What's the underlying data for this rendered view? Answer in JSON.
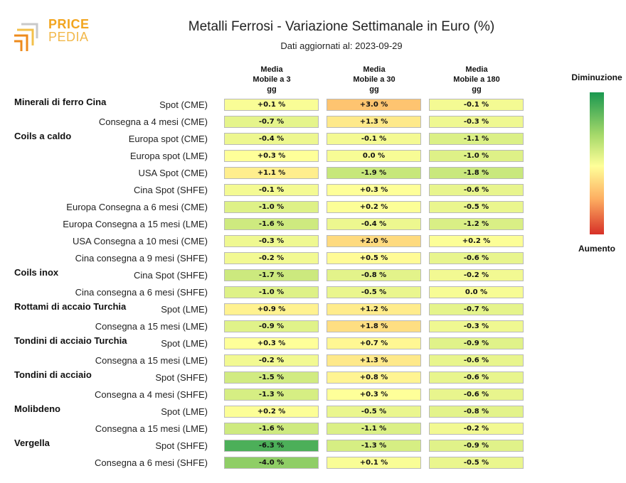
{
  "logo": {
    "word1": "PRICE",
    "word2": "PEDIA"
  },
  "title": "Metalli Ferrosi - Variazione Settimanale in Euro (%)",
  "subtitle": "Dati aggiornati al: 2023-09-29",
  "legend": {
    "top": "Diminuzione",
    "bottom": "Aumento",
    "colors": [
      "#1a9850",
      "#a6d96a",
      "#ffff99",
      "#fdae61",
      "#d73027"
    ],
    "range": [
      -8,
      8
    ]
  },
  "chart_data": {
    "type": "heatmap",
    "columns": [
      {
        "line1": "Media",
        "line2": "Mobile a 3",
        "line3": "gg"
      },
      {
        "line1": "Media",
        "line2": "Mobile a 30",
        "line3": "gg"
      },
      {
        "line1": "Media",
        "line2": "Mobile a 180",
        "line3": "gg"
      }
    ],
    "groups": [
      {
        "name": "Minerali di ferro Cina",
        "rows": [
          {
            "label": "Spot (CME)",
            "values": [
              0.1,
              3.0,
              -0.1
            ]
          },
          {
            "label": "Consegna a 4 mesi (CME)",
            "values": [
              -0.7,
              1.3,
              -0.3
            ]
          }
        ]
      },
      {
        "name": "Coils a caldo",
        "rows": [
          {
            "label": "Europa spot (CME)",
            "values": [
              -0.4,
              -0.1,
              -1.1
            ]
          },
          {
            "label": "Europa spot (LME)",
            "values": [
              0.3,
              0.0,
              -1.0
            ]
          },
          {
            "label": "USA Spot (CME)",
            "values": [
              1.1,
              -1.9,
              -1.8
            ]
          },
          {
            "label": "Cina Spot (SHFE)",
            "values": [
              -0.1,
              0.3,
              -0.6
            ]
          },
          {
            "label": "Europa Consegna a 6 mesi (CME)",
            "values": [
              -1.0,
              0.2,
              -0.5
            ]
          },
          {
            "label": "Europa Consegna a 15 mesi (LME)",
            "values": [
              -1.6,
              -0.4,
              -1.2
            ]
          },
          {
            "label": "USA Consegna a 10 mesi (CME)",
            "values": [
              -0.3,
              2.0,
              0.2
            ]
          },
          {
            "label": "Cina consegna a 9 mesi (SHFE)",
            "values": [
              -0.2,
              0.5,
              -0.6
            ]
          }
        ]
      },
      {
        "name": "Coils inox",
        "rows": [
          {
            "label": "Cina Spot (SHFE)",
            "values": [
              -1.7,
              -0.8,
              -0.2
            ]
          },
          {
            "label": "Cina consegna a 6 mesi (SHFE)",
            "values": [
              -1.0,
              -0.5,
              0.0
            ]
          }
        ]
      },
      {
        "name": "Rottami di accaio Turchia",
        "rows": [
          {
            "label": "Spot (LME)",
            "values": [
              0.9,
              1.2,
              -0.7
            ]
          },
          {
            "label": "Consegna a 15 mesi (LME)",
            "values": [
              -0.9,
              1.8,
              -0.3
            ]
          }
        ]
      },
      {
        "name": "Tondini di acciaio Turchia",
        "rows": [
          {
            "label": "Spot (LME)",
            "values": [
              0.3,
              0.7,
              -0.9
            ]
          },
          {
            "label": "Consegna a 15 mesi (LME)",
            "values": [
              -0.2,
              1.3,
              -0.6
            ]
          }
        ]
      },
      {
        "name": "Tondini di acciaio",
        "rows": [
          {
            "label": "Spot (SHFE)",
            "values": [
              -1.5,
              0.8,
              -0.6
            ]
          },
          {
            "label": "Consegna a 4 mesi (SHFE)",
            "values": [
              -1.3,
              0.3,
              -0.6
            ]
          }
        ]
      },
      {
        "name": "Molibdeno",
        "rows": [
          {
            "label": "Spot (LME)",
            "values": [
              0.2,
              -0.5,
              -0.8
            ]
          },
          {
            "label": "Consegna a 15 mesi (LME)",
            "values": [
              -1.6,
              -1.1,
              -0.2
            ]
          }
        ]
      },
      {
        "name": "Vergella",
        "rows": [
          {
            "label": "Spot (SHFE)",
            "values": [
              -6.3,
              -1.3,
              -0.9
            ]
          },
          {
            "label": "Consegna a 6 mesi (SHFE)",
            "values": [
              -4.0,
              0.1,
              -0.5
            ]
          }
        ]
      }
    ]
  }
}
